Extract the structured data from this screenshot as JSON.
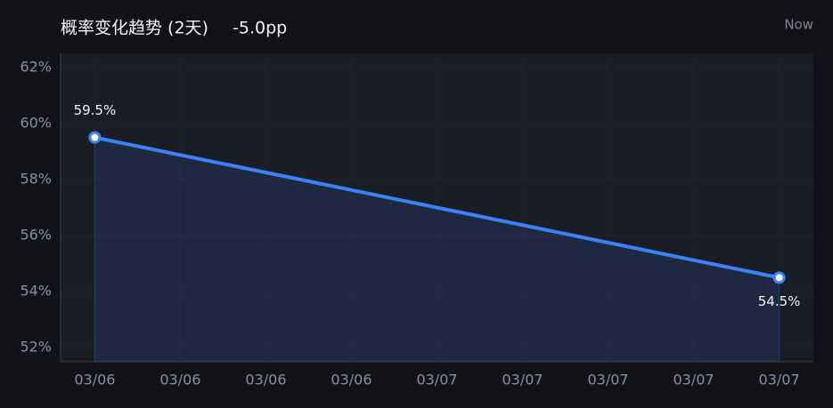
{
  "chart_data": {
    "type": "line",
    "title": "概率变化趋势 (2天)",
    "change": "-5.0pp",
    "time_label": "Now",
    "x": [
      0,
      8
    ],
    "xlim": [
      -0.4,
      8.4
    ],
    "xticks": [
      {
        "value": 0,
        "label": "03/06"
      },
      {
        "value": 1,
        "label": "03/06"
      },
      {
        "value": 2,
        "label": "03/06"
      },
      {
        "value": 3,
        "label": "03/06"
      },
      {
        "value": 4,
        "label": "03/07"
      },
      {
        "value": 5,
        "label": "03/07"
      },
      {
        "value": 6,
        "label": "03/07"
      },
      {
        "value": 7,
        "label": "03/07"
      },
      {
        "value": 8,
        "label": "03/07"
      }
    ],
    "series": [
      {
        "name": "probability",
        "color": "#3b82f6",
        "values": [
          59.5,
          54.5
        ],
        "value_labels": [
          "59.5%",
          "54.5%"
        ]
      }
    ],
    "ylim": [
      51.5,
      62.5
    ],
    "yticks": [
      {
        "value": 52,
        "label": "52%"
      },
      {
        "value": 54,
        "label": "54%"
      },
      {
        "value": 56,
        "label": "56%"
      },
      {
        "value": 58,
        "label": "58%"
      },
      {
        "value": 60,
        "label": "60%"
      },
      {
        "value": 62,
        "label": "62%"
      }
    ],
    "grid": true
  }
}
